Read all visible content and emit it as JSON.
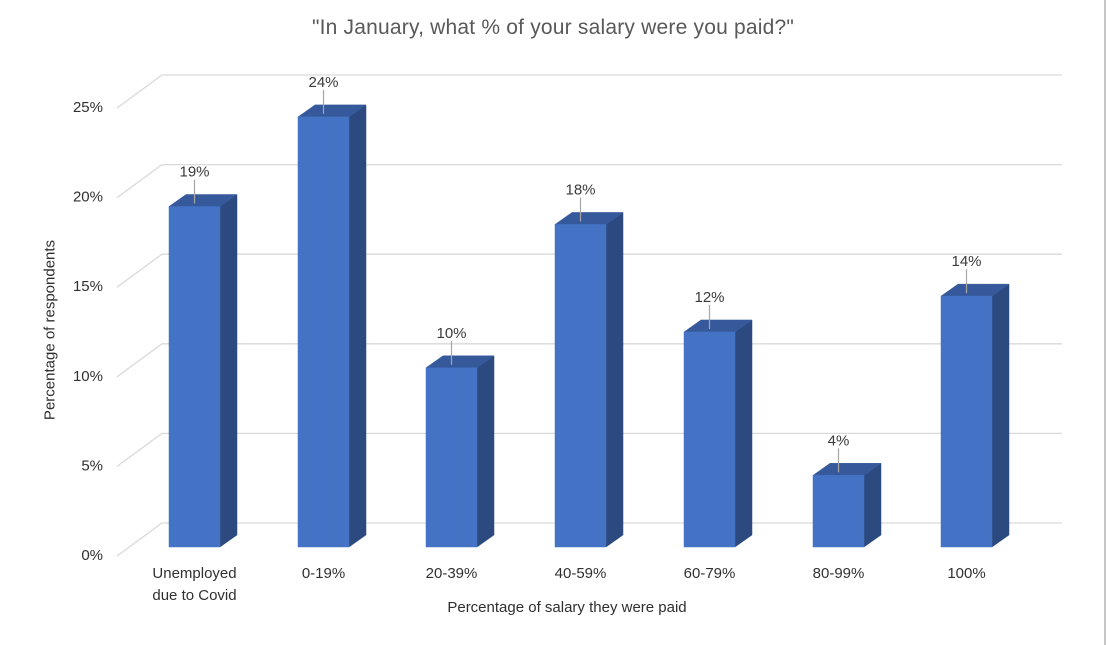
{
  "chart_data": {
    "type": "bar",
    "variant": "3d-clustered-column",
    "title": "\"In January, what % of your salary were you paid?\"",
    "categories": [
      "Unemployed due to Covid",
      "0-19%",
      "20-39%",
      "40-59%",
      "60-79%",
      "80-99%",
      "100%"
    ],
    "values": [
      19,
      24,
      10,
      18,
      12,
      4,
      14
    ],
    "data_labels": [
      "19%",
      "24%",
      "10%",
      "18%",
      "12%",
      "4%",
      "14%"
    ],
    "xlabel": "Percentage of salary they were paid",
    "ylabel": "Percentage of respondents",
    "y_ticks": [
      "0%",
      "5%",
      "10%",
      "15%",
      "20%",
      "25%"
    ],
    "ylim": [
      0,
      25
    ],
    "y_tick_step": 5,
    "grid": true,
    "legend": "none",
    "colors": {
      "bar_front": "#4472C4",
      "bar_top": "#36599B",
      "bar_side": "#2C4A7F",
      "gridline": "#D9D9D9",
      "leader_line": "#A6A6A6",
      "title_text": "#595959",
      "axis_text": "#303030",
      "border_right": "#C6C6C6",
      "background": "#FFFFFF"
    }
  }
}
